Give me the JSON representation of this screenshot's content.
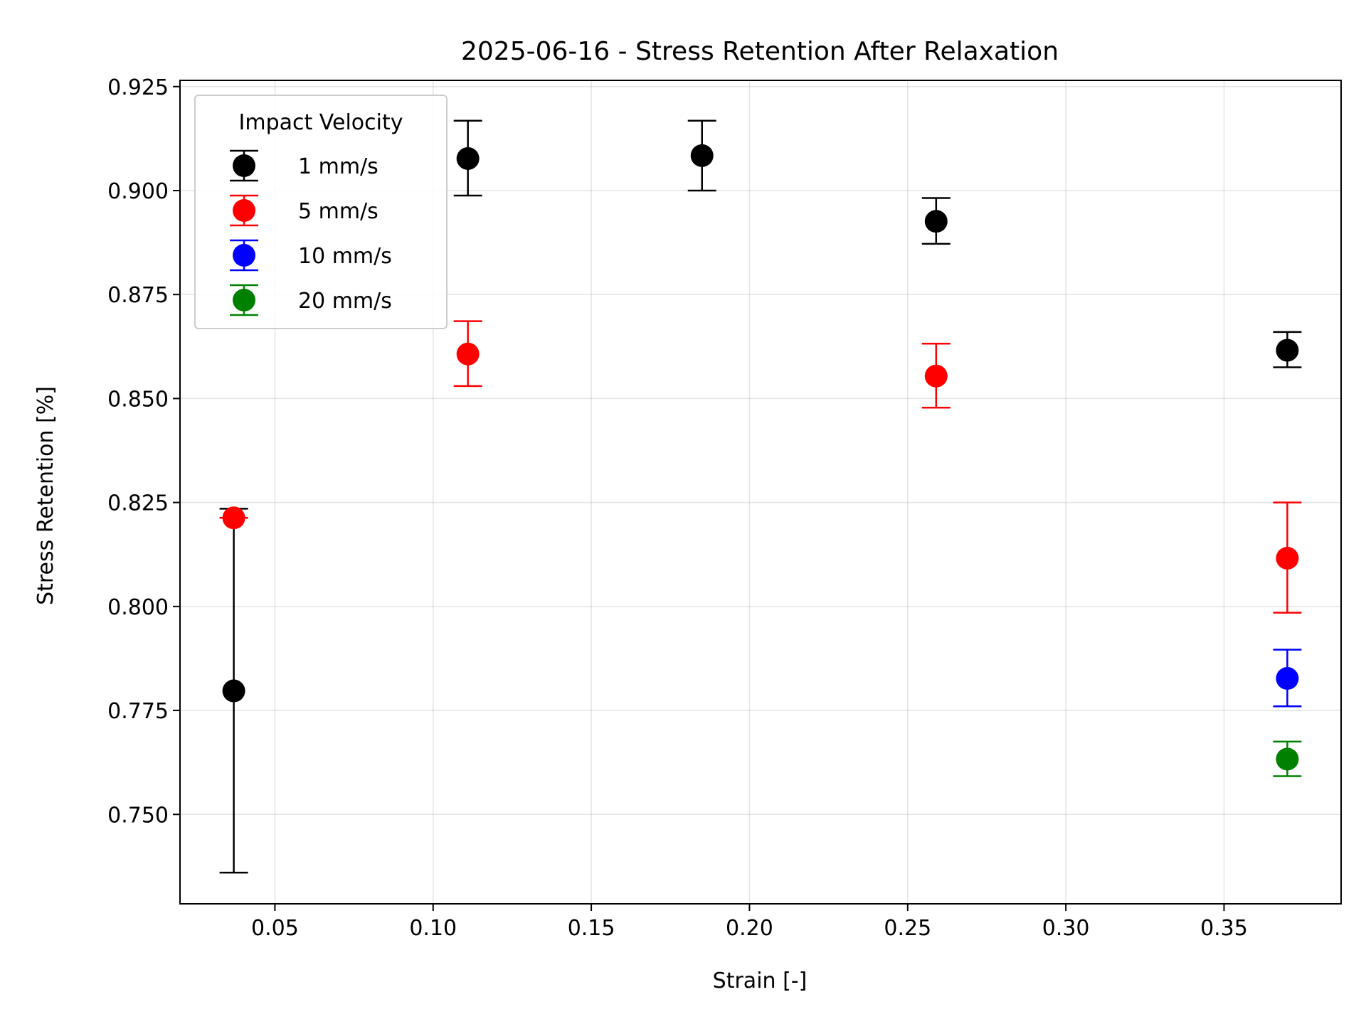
{
  "chart_data": {
    "type": "scatter",
    "title": "2025-06-16 - Stress Retention After Relaxation",
    "xlabel": "Strain [-]",
    "ylabel": "Stress Retention [%]",
    "xlim": [
      0.02,
      0.387
    ],
    "ylim": [
      0.7285,
      0.9265
    ],
    "xticks": [
      0.05,
      0.1,
      0.15,
      0.2,
      0.25,
      0.3,
      0.35
    ],
    "xtick_labels": [
      "0.05",
      "0.10",
      "0.15",
      "0.20",
      "0.25",
      "0.30",
      "0.35"
    ],
    "yticks": [
      0.75,
      0.775,
      0.8,
      0.825,
      0.85,
      0.875,
      0.9,
      0.925
    ],
    "ytick_labels": [
      "0.750",
      "0.775",
      "0.800",
      "0.825",
      "0.850",
      "0.875",
      "0.900",
      "0.925"
    ],
    "grid": true,
    "legend": {
      "title": "Impact Velocity",
      "position": "top-left"
    },
    "series": [
      {
        "name": "1 mm/s",
        "color": "#000000",
        "points": [
          {
            "x": 0.037,
            "y": 0.7797,
            "err_low": 0.736,
            "err_high": 0.8235
          },
          {
            "x": 0.111,
            "y": 0.9077,
            "err_low": 0.8988,
            "err_high": 0.9168
          },
          {
            "x": 0.185,
            "y": 0.9084,
            "err_low": 0.9,
            "err_high": 0.9168
          },
          {
            "x": 0.259,
            "y": 0.8926,
            "err_low": 0.8872,
            "err_high": 0.8982
          },
          {
            "x": 0.37,
            "y": 0.8616,
            "err_low": 0.8575,
            "err_high": 0.866
          }
        ]
      },
      {
        "name": "5 mm/s",
        "color": "#ff0000",
        "points": [
          {
            "x": 0.037,
            "y": 0.8213,
            "err_low": 0.8213,
            "err_high": 0.8213
          },
          {
            "x": 0.111,
            "y": 0.8607,
            "err_low": 0.853,
            "err_high": 0.8686
          },
          {
            "x": 0.259,
            "y": 0.8554,
            "err_low": 0.8478,
            "err_high": 0.8632
          },
          {
            "x": 0.37,
            "y": 0.8116,
            "err_low": 0.7985,
            "err_high": 0.825
          }
        ]
      },
      {
        "name": "10 mm/s",
        "color": "#0000ff",
        "points": [
          {
            "x": 0.37,
            "y": 0.7827,
            "err_low": 0.776,
            "err_high": 0.7896
          }
        ]
      },
      {
        "name": "20 mm/s",
        "color": "#008000",
        "points": [
          {
            "x": 0.37,
            "y": 0.7633,
            "err_low": 0.7592,
            "err_high": 0.7675
          }
        ]
      }
    ]
  }
}
